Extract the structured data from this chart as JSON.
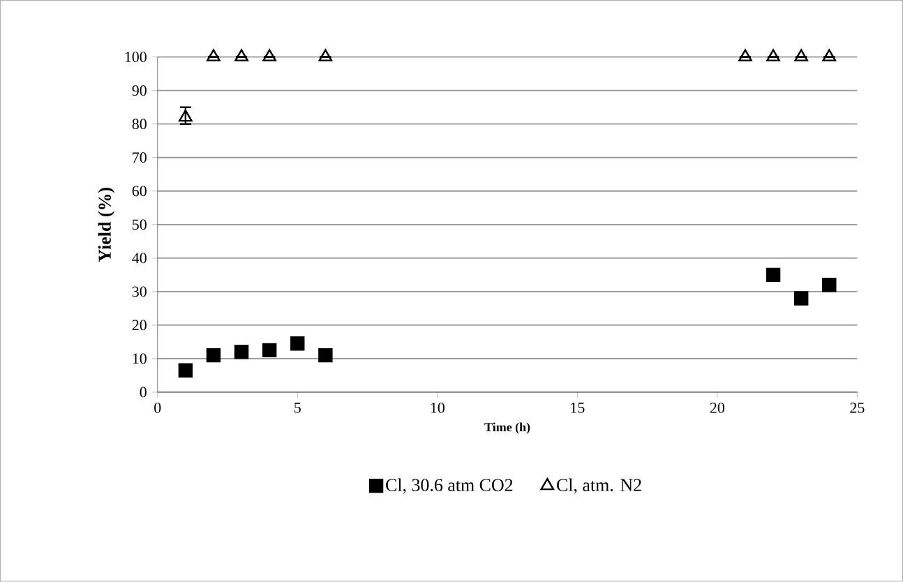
{
  "chart_data": {
    "type": "scatter",
    "xlabel": "Time (h)",
    "ylabel": "Yield (%)",
    "xlim": [
      0,
      25
    ],
    "xticks": [
      0,
      5,
      10,
      15,
      20,
      25
    ],
    "ylim": [
      0,
      100
    ],
    "yticks": [
      0,
      10,
      20,
      30,
      40,
      50,
      60,
      70,
      80,
      90,
      100
    ],
    "grid": "y",
    "legend": "bottom",
    "series": [
      {
        "name": "Cl, 30.6 atm CO2",
        "color": "#000000",
        "marker": "square",
        "x": [
          1,
          2,
          3,
          4,
          5,
          6,
          22,
          23,
          24
        ],
        "values": [
          6.5,
          11,
          12,
          12.5,
          14.5,
          11,
          35,
          28,
          32
        ]
      },
      {
        "name": "Cl, atm. N2",
        "color": "#000000",
        "marker": "triangle",
        "x": [
          1,
          2,
          3,
          4,
          6,
          21,
          22,
          23,
          24
        ],
        "values": [
          82,
          100,
          100,
          100,
          100,
          100,
          100,
          100,
          100
        ],
        "errors": [
          [
            80,
            85
          ],
          null,
          null,
          null,
          null,
          null,
          null,
          null,
          null
        ]
      }
    ]
  }
}
